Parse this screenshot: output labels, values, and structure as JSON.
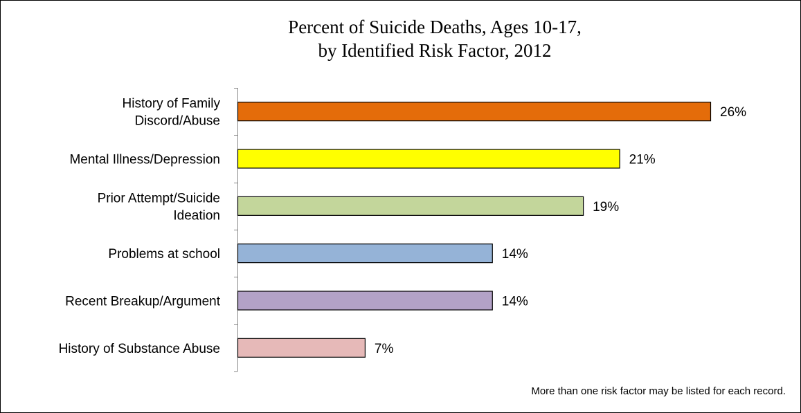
{
  "chart_data": {
    "type": "bar",
    "orientation": "horizontal",
    "title_lines": [
      "Percent of Suicide Deaths, Ages 10-17,",
      "by Identified Risk Factor, 2012"
    ],
    "categories": [
      [
        "History of Family",
        "Discord/Abuse"
      ],
      [
        "Mental Illness/Depression"
      ],
      [
        "Prior Attempt/Suicide",
        "Ideation"
      ],
      [
        "Problems at school"
      ],
      [
        "Recent Breakup/Argument"
      ],
      [
        "History of Substance Abuse"
      ]
    ],
    "values": [
      26,
      21,
      19,
      14,
      14,
      7
    ],
    "value_labels": [
      "26%",
      "21%",
      "19%",
      "14%",
      "14%",
      "7%"
    ],
    "colors": [
      "#E46C0A",
      "#FFFF00",
      "#C3D69B",
      "#95B3D7",
      "#B3A2C7",
      "#E6B9B8"
    ],
    "xlim": [
      0,
      26
    ],
    "grid": false,
    "legend": "none",
    "footnote": "More than one risk factor may be listed for each record."
  }
}
